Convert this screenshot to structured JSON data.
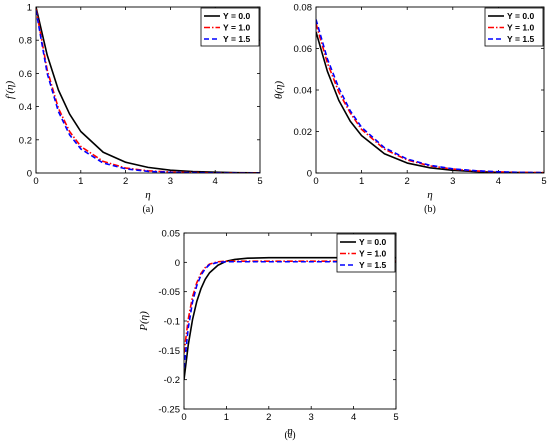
{
  "chart_data": [
    {
      "type": "line",
      "caption": "(a)",
      "ylabel": "f′(η)",
      "xlabel": "η",
      "xlim": [
        0,
        5
      ],
      "ylim": [
        0,
        1
      ],
      "xticks": [
        "0",
        "1",
        "2",
        "3",
        "4",
        "5"
      ],
      "yticks": [
        "0",
        "0.2",
        "0.4",
        "0.6",
        "0.8",
        "1"
      ],
      "legend_position": "top-right",
      "x": [
        0,
        0.25,
        0.5,
        0.75,
        1,
        1.5,
        2,
        2.5,
        3,
        3.5,
        4,
        4.5,
        5
      ],
      "series": [
        {
          "name": "Υ = 0.0",
          "color": "#000000",
          "dash": "solid",
          "values": [
            1.0,
            0.71,
            0.5,
            0.355,
            0.25,
            0.125,
            0.065,
            0.034,
            0.017,
            0.009,
            0.005,
            0.002,
            0.001
          ]
        },
        {
          "name": "Υ = 1.0",
          "color": "#ff0000",
          "dash": "dashdot",
          "values": [
            0.99,
            0.62,
            0.39,
            0.25,
            0.16,
            0.07,
            0.03,
            0.013,
            0.006,
            0.003,
            0.001,
            0.0,
            0.0
          ]
        },
        {
          "name": "Υ = 1.5",
          "color": "#0000ff",
          "dash": "dashed",
          "values": [
            0.98,
            0.6,
            0.37,
            0.23,
            0.145,
            0.06,
            0.025,
            0.01,
            0.004,
            0.002,
            0.001,
            0.0,
            0.0
          ]
        }
      ]
    },
    {
      "type": "line",
      "caption": "(b)",
      "ylabel": "θ(η)",
      "xlabel": "η",
      "xlim": [
        0,
        5
      ],
      "ylim": [
        0,
        0.08
      ],
      "xticks": [
        "0",
        "1",
        "2",
        "3",
        "4",
        "5"
      ],
      "yticks": [
        "0",
        "0.02",
        "0.04",
        "0.06",
        "0.08"
      ],
      "legend_position": "top-right",
      "x": [
        0,
        0.25,
        0.5,
        0.75,
        1,
        1.5,
        2,
        2.5,
        3,
        3.5,
        4,
        4.5,
        5
      ],
      "series": [
        {
          "name": "Υ = 0.0",
          "color": "#000000",
          "dash": "solid",
          "values": [
            0.068,
            0.049,
            0.035,
            0.025,
            0.018,
            0.0093,
            0.0048,
            0.0025,
            0.0013,
            0.0007,
            0.0003,
            0.0002,
            0.0001
          ]
        },
        {
          "name": "Υ = 1.0",
          "color": "#ff0000",
          "dash": "dashdot",
          "values": [
            0.072,
            0.053,
            0.039,
            0.029,
            0.021,
            0.0115,
            0.0063,
            0.0034,
            0.0019,
            0.001,
            0.0005,
            0.0003,
            0.0002
          ]
        },
        {
          "name": "Υ = 1.5",
          "color": "#0000ff",
          "dash": "dashed",
          "values": [
            0.074,
            0.055,
            0.041,
            0.03,
            0.022,
            0.0122,
            0.0067,
            0.0037,
            0.002,
            0.0011,
            0.0006,
            0.0003,
            0.0002
          ]
        }
      ]
    },
    {
      "type": "line",
      "caption": "(c)",
      "ylabel": "P(η)",
      "xlabel": "η",
      "xlim": [
        0,
        5
      ],
      "ylim": [
        -0.25,
        0.05
      ],
      "xticks": [
        "0",
        "1",
        "2",
        "3",
        "4",
        "5"
      ],
      "yticks": [
        "-0.25",
        "-0.2",
        "-0.15",
        "-0.1",
        "-0.05",
        "0",
        "0.05"
      ],
      "legend_position": "top-right",
      "x": [
        0,
        0.1,
        0.2,
        0.3,
        0.4,
        0.5,
        0.6,
        0.8,
        1.0,
        1.2,
        1.5,
        2,
        3,
        4,
        5
      ],
      "series": [
        {
          "name": "Υ = 0.0",
          "color": "#000000",
          "dash": "solid",
          "values": [
            -0.2,
            -0.141,
            -0.098,
            -0.067,
            -0.045,
            -0.029,
            -0.018,
            -0.005,
            0.002,
            0.005,
            0.007,
            0.008,
            0.008,
            0.008,
            0.008
          ]
        },
        {
          "name": "Υ = 1.0",
          "color": "#ff0000",
          "dash": "dashdot",
          "values": [
            -0.155,
            -0.097,
            -0.059,
            -0.035,
            -0.019,
            -0.009,
            -0.003,
            0.001,
            0.002,
            0.002,
            0.002,
            0.002,
            0.002,
            0.002,
            0.002
          ]
        },
        {
          "name": "Υ = 1.5",
          "color": "#0000ff",
          "dash": "dashed",
          "values": [
            -0.18,
            -0.112,
            -0.068,
            -0.04,
            -0.022,
            -0.011,
            -0.004,
            0.0,
            0.001,
            0.001,
            0.001,
            0.001,
            0.001,
            0.001,
            0.001
          ]
        }
      ]
    }
  ]
}
